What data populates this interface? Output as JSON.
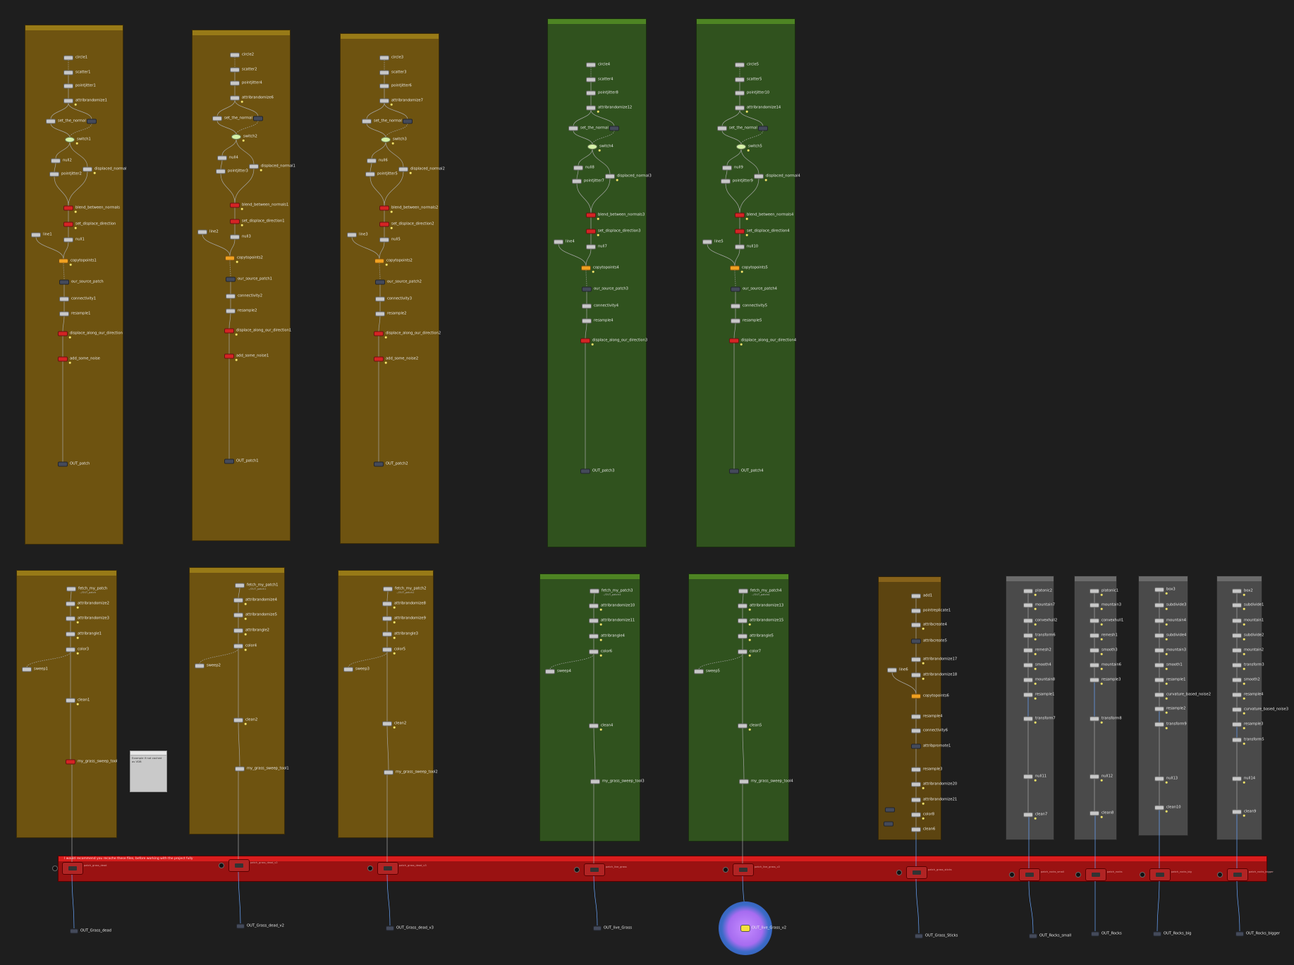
{
  "colors": {
    "background": "#1e1e1e",
    "box_gold": "#6e5310",
    "box_gold_bar": "#987a17",
    "box_green": "#30521e",
    "box_green_bar": "#4e8423",
    "box_brown": "#5c4410",
    "box_brown_bar": "#87621a",
    "box_grey": "#4a4a4a",
    "box_grey_bar": "#6b6b6b",
    "node_default": "#c8c8c8",
    "node_red": "#d42424",
    "node_orange": "#f0a020",
    "node_dark": "#444a5a",
    "node_switch": "#d6f2a8",
    "banner": "#9a1212",
    "banner_bar": "#d81d1d"
  },
  "banner": {
    "text": "I would recommend you recache these files, before working with the project fully"
  },
  "sticky_note": {
    "text": "Example if not cached as VDB"
  },
  "output_nodes": [
    "OUT_Grass_dead",
    "OUT_Grass_dead_v2",
    "OUT_Grass_dead_v3",
    "OUT_live_Grass",
    "OUT_live_Grass_v2",
    "OUT_Grass_Sticks",
    "OUT_Rocks_small",
    "OUT_Rocks",
    "OUT_Rocks_big",
    "OUT_Rocks_bigger"
  ],
  "cache_nodes": [
    "patch_grass_dead",
    "patch_grass_dead_v2",
    "patch_grass_dead_v3",
    "patch_live_grass",
    "patch_live_grass_v2",
    "patch_grass_sticks",
    "patch_rocks_small",
    "patch_rocks",
    "patch_rocks_big",
    "patch_rocks_bigger"
  ],
  "upper_columns": [
    {
      "color": "gold",
      "nodes": {
        "circle": "circle1",
        "scatter": "scatter1",
        "pointjitter": "pointjitter1",
        "attrrand": "attribrandomize1",
        "setnormal": "set_the_normal",
        "switch": "switch1",
        "null": "null2",
        "pointjitter_b": "pointjitter2",
        "displaced": "displaced_normal",
        "blend": "blend_between_normals",
        "setdisp": "set_displace_direction",
        "null_b": "null1",
        "line": "line1",
        "copy": "copytopoints1",
        "oursource": "our_source_patch",
        "connectivity": "connectivity1",
        "resample": "resample1",
        "displace": "displace_along_our_direction",
        "noise": "add_some_noise",
        "out": "OUT_patch"
      }
    },
    {
      "color": "gold",
      "nodes": {
        "circle": "circle2",
        "scatter": "scatter2",
        "pointjitter": "pointjitter4",
        "attrrand": "attribrandomize6",
        "setnormal": "set_the_normal",
        "switch": "switch2",
        "null": "null4",
        "pointjitter_b": "pointjitter3",
        "displaced": "displaced_normal1",
        "blend": "blend_between_normals1",
        "setdisp": "set_displace_direction1",
        "null_b": "null3",
        "line": "line2",
        "copy": "copytopoints2",
        "oursource": "our_source_patch1",
        "connectivity": "connectivity2",
        "resample": "resample2",
        "displace": "displace_along_our_direction1",
        "noise": "add_some_noise1",
        "out": "OUT_patch1"
      }
    },
    {
      "color": "gold",
      "nodes": {
        "circle": "circle3",
        "scatter": "scatter3",
        "pointjitter": "pointjitter6",
        "attrrand": "attribrandomize7",
        "setnormal": "set_the_normal",
        "switch": "switch3",
        "null": "null6",
        "pointjitter_b": "pointjitter5",
        "displaced": "displaced_normal2",
        "blend": "blend_between_normals2",
        "setdisp": "set_displace_direction2",
        "null_b": "null5",
        "line": "line3",
        "copy": "copytopoints2",
        "oursource": "our_source_patch2",
        "connectivity": "connectivity3",
        "resample": "resample2",
        "displace": "displace_along_our_direction2",
        "noise": "add_some_noise2",
        "out": "OUT_patch2"
      }
    },
    {
      "color": "green",
      "nodes": {
        "circle": "circle4",
        "scatter": "scatter4",
        "pointjitter": "pointjitter8",
        "attrrand": "attribrandomize12",
        "setnormal": "set_the_normal",
        "switch": "switch4",
        "null": "null8",
        "pointjitter_b": "pointjitter7",
        "displaced": "displaced_normal3",
        "blend": "blend_between_normals3",
        "setdisp": "set_displace_direction3",
        "null_b": "null7",
        "line": "line4",
        "copy": "copytopoints4",
        "oursource": "our_source_patch3",
        "connectivity": "connectivity4",
        "resample": "resample4",
        "displace": "displace_along_our_direction3",
        "noise": "",
        "out": "OUT_patch3"
      }
    },
    {
      "color": "green",
      "nodes": {
        "circle": "circle5",
        "scatter": "scatter5",
        "pointjitter": "pointjitter10",
        "attrrand": "attribrandomize14",
        "setnormal": "set_the_normal",
        "switch": "switch5",
        "null": "null9",
        "pointjitter_b": "pointjitter9",
        "displaced": "displaced_normal4",
        "blend": "blend_between_normals4",
        "setdisp": "set_displace_direction4",
        "null_b": "null10",
        "line": "line5",
        "copy": "copytopoints5",
        "oursource": "our_source_patch4",
        "connectivity": "connectivity5",
        "resample": "resample5",
        "displace": "displace_along_our_direction4",
        "noise": "",
        "out": "OUT_patch4"
      }
    }
  ],
  "lower_grass_columns": [
    {
      "color": "gold",
      "fetch": "fetch_my_patch",
      "attr_a": "attribrandomize2",
      "attr_b": "attribrandomize3",
      "attr_c": "attribrangle1",
      "color_node": "color3",
      "sweep": "sweep1",
      "clean": "clean1",
      "final": "my_grass_sweep_tool",
      "sub_fetch": "../OUT_patch"
    },
    {
      "color": "gold",
      "fetch": "fetch_my_patch1",
      "attr_a": "attribrandomize4",
      "attr_b": "attribrandomize5",
      "attr_c": "attribrangle2",
      "color_node": "color4",
      "sweep": "sweep2",
      "clean": "clean2",
      "final": "my_grass_sweep_tool1",
      "sub_fetch": "../OUT_patch1"
    },
    {
      "color": "gold",
      "fetch": "fetch_my_patch2",
      "attr_a": "attribrandomize8",
      "attr_b": "attribrandomize9",
      "attr_c": "attribrangle3",
      "color_node": "color5",
      "sweep": "sweep3",
      "clean": "clean2",
      "final": "my_grass_sweep_tool2",
      "sub_fetch": "../OUT_patch2"
    },
    {
      "color": "green",
      "fetch": "fetch_my_patch3",
      "attr_a": "attribrandomize10",
      "attr_b": "attribrandomize11",
      "attr_c": "attribrangle4",
      "color_node": "color6",
      "sweep": "sweep4",
      "clean": "clean4",
      "final": "my_grass_sweep_tool3",
      "sub_fetch": "../OUT_patch3"
    },
    {
      "color": "green",
      "fetch": "fetch_my_patch4",
      "attr_a": "attribrandomize13",
      "attr_b": "attribrandomize15",
      "attr_c": "attribrangle5",
      "color_node": "color7",
      "sweep": "sweep5",
      "clean": "clean5",
      "final": "my_grass_sweep_tool4",
      "sub_fetch": "../OUT_patch4"
    }
  ],
  "sticks_column": {
    "nodes": [
      "add1",
      "pointreplicate1",
      "attribcreate4",
      "attribcreate5",
      "attribrandomize17",
      "attribrandomize18",
      "line6",
      "copytopoints6",
      "resample4",
      "connectivity6",
      "attribpromote1",
      "resample3",
      "attribrandomize20",
      "attribrandomize21",
      "color8",
      "clean6"
    ]
  },
  "rock_columns": [
    {
      "nodes": [
        "platonic2",
        "mountain7",
        "convexhull2",
        "transform6",
        "remesh2",
        "smooth4",
        "mountain8",
        "resample1",
        "transform7",
        "null11",
        "clean7"
      ]
    },
    {
      "nodes": [
        "platonic1",
        "mountain3",
        "convexhull1",
        "remesh1",
        "smooth3",
        "mountain6",
        "resample3",
        "transform8",
        "null12",
        "clean8"
      ]
    },
    {
      "nodes": [
        "box3",
        "subdivide3",
        "mountain4",
        "subdivide4",
        "mountain3",
        "smooth1",
        "resample1",
        "curvature_based_noise2",
        "resample2",
        "transform9",
        "null13",
        "clean10"
      ]
    },
    {
      "nodes": [
        "box2",
        "subdivide1",
        "mountain1",
        "subdivide2",
        "mountain2",
        "transform3",
        "smooth2",
        "resample4",
        "curvature_based_noise3",
        "resample3",
        "transform5",
        "null14",
        "clean9"
      ]
    }
  ]
}
